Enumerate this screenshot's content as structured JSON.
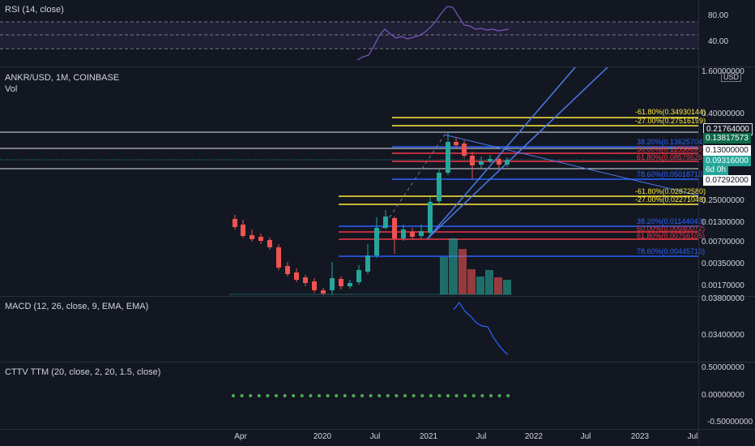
{
  "colors": {
    "background": "#131722",
    "up": "#26a69a",
    "down": "#ef5350",
    "fib_yellow": "#ffeb3b",
    "fib_blue": "#2962ff",
    "fib_red": "#f23645",
    "pitch": "#4b7bec",
    "rsi": "#7e57c2",
    "macd": "#2962ff",
    "squeeze": "#4caf50"
  },
  "rsi": {
    "title": "RSI (14, close)",
    "levels": [
      "80.00",
      "40.00"
    ]
  },
  "main": {
    "symbol": "ANKR/USD, 1M, COINBASE",
    "vol_label": "Vol",
    "price_scale": [
      "1.60000000",
      "0.40000000",
      "0.25000000",
      "0.01300000",
      "0.00700000",
      "0.00350000",
      "0.00170000"
    ],
    "currency": "USD",
    "tags": [
      {
        "value": "0.21764000",
        "style": "white"
      },
      {
        "value": "0.13817573",
        "style": "green"
      },
      {
        "value": "0.13000000",
        "style": "white"
      },
      {
        "value": "0.09316000",
        "style": "teal"
      },
      {
        "value": "6d 0h",
        "style": "teal"
      },
      {
        "value": "0.07292000",
        "style": "white"
      }
    ],
    "fib_upper": [
      {
        "label": "-61.80%(0.34930144)",
        "color": "yellow"
      },
      {
        "label": "-27.00%(0.27516199)",
        "color": "yellow"
      },
      {
        "label": "38.20%(0.13625704)",
        "color": "blue"
      },
      {
        "label": "50.00%(0.11550698)",
        "color": "red"
      },
      {
        "label": "61.80%(0.08579526)",
        "color": "red"
      },
      {
        "label": "78.60%(0.05018710)",
        "color": "blue"
      }
    ],
    "fib_lower": [
      {
        "label": "-61.80%(0.02872580)",
        "color": "yellow"
      },
      {
        "label": "-27.00%(0.02271048)",
        "color": "yellow"
      },
      {
        "label": "38.20%(0.01144040)",
        "color": "blue"
      },
      {
        "label": "50.00%(0.00940072)",
        "color": "red"
      },
      {
        "label": "61.80%(0.00756105)",
        "color": "red"
      },
      {
        "label": "78.60%(0.00445710)",
        "color": "blue"
      }
    ]
  },
  "macd": {
    "title": "MACD (12, 26, close, 9, EMA, EMA)",
    "scale": [
      "0.03800000",
      "0.03400000"
    ]
  },
  "cttv": {
    "title": "CTTV TTM (20, close, 2, 20, 1.5, close)",
    "scale": [
      "0.50000000",
      "0.00000000",
      "-0.50000000"
    ]
  },
  "time_axis": [
    "Apr",
    "2020",
    "Jul",
    "2021",
    "Jul",
    "2022",
    "Jul",
    "2023",
    "Jul"
  ]
}
